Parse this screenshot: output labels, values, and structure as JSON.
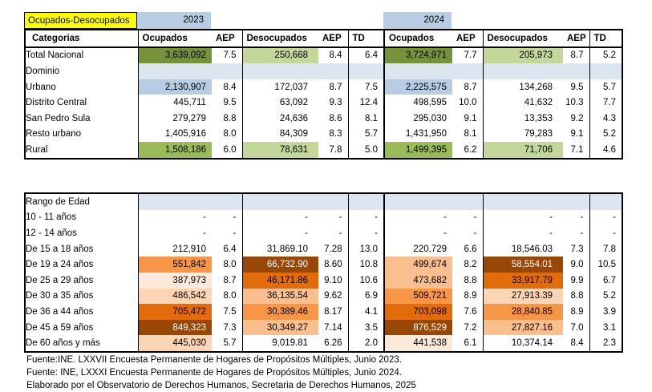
{
  "title": {
    "label": "Ocupados-Desocupados",
    "year_2023": "2023",
    "year_2024": "2024"
  },
  "colors": {
    "title_bg": "#FFFF00",
    "year_bg": "#B8CCE4",
    "band": "#DCE6F1",
    "g1": "#76933C",
    "g2": "#9BBB59",
    "g3": "#C4D79B",
    "blu": "#B8CCE4",
    "o1": "#FDE9D9",
    "o2": "#FCD5B4",
    "o3": "#FABF8F",
    "o4": "#F79646",
    "o5": "#E26B0A",
    "o6": "#974706",
    "white_text": "#FFFFFF"
  },
  "columns": [
    "Categorias",
    "Ocupados",
    "AEP",
    "Desocupados",
    "AEP",
    "TD",
    "Ocupados",
    "AEP",
    "Desocupados",
    "AEP",
    "TD"
  ],
  "table1": {
    "rows": [
      {
        "label": "Total Nacional",
        "ind": 1,
        "bold": true,
        "cells": [
          {
            "v": "3,639,092",
            "bg": "g1",
            "b": 1
          },
          {
            "v": "7.5",
            "b": 1
          },
          {
            "v": "250,668",
            "bg": "g3"
          },
          {
            "v": "8.4",
            "b": 1
          },
          {
            "v": "6.4",
            "b": 1
          },
          {
            "v": "3,724,971",
            "bg": "g1",
            "b": 1
          },
          {
            "v": "7.7",
            "b": 1
          },
          {
            "v": "205,973",
            "bg": "g3"
          },
          {
            "v": "8.7",
            "b": 1
          },
          {
            "v": "5.2",
            "b": 1
          }
        ]
      },
      {
        "label": "Dominio",
        "ind": 1,
        "bold": true,
        "band": true,
        "cells": [
          "",
          "",
          "",
          "",
          "",
          "",
          "",
          "",
          "",
          ""
        ]
      },
      {
        "label": "Urbano",
        "ind": 3,
        "cells": [
          {
            "v": "2,130,907",
            "bg": "blu"
          },
          "8.4",
          "172,037",
          "8.7",
          "7.5",
          {
            "v": "2,225,575",
            "bg": "blu"
          },
          "8.7",
          "134,268",
          "9.5",
          "5.7"
        ]
      },
      {
        "label": "Distrito Central",
        "ind": 4,
        "cells": [
          "445,711",
          "9.5",
          "63,092",
          "9.3",
          "12.4",
          "498,595",
          "10.0",
          "41,632",
          "10.3",
          "7.7"
        ]
      },
      {
        "label": "San Pedro Sula",
        "ind": 4,
        "cells": [
          "279,279",
          "8.8",
          "24,636",
          "8.6",
          "8.1",
          "295,030",
          "9.1",
          "13,353",
          "9.2",
          "4.3"
        ]
      },
      {
        "label": "Resto urbano",
        "ind": 4,
        "cells": [
          "1,405,916",
          "8.0",
          "84,309",
          "8.3",
          "5.7",
          "1,431,950",
          "8.1",
          "79,283",
          "9.1",
          "5.2"
        ]
      },
      {
        "label": "Rural",
        "ind": 2,
        "cells": [
          {
            "v": "1,508,186",
            "bg": "g2"
          },
          "6.0",
          {
            "v": "78,631",
            "bg": "g3"
          },
          "7.8",
          "5.0",
          {
            "v": "1,499,395",
            "bg": "g2"
          },
          "6.2",
          {
            "v": "71,706",
            "bg": "g3"
          },
          "7.1",
          "4.6"
        ]
      }
    ]
  },
  "table2": {
    "rows": [
      {
        "label": "Rango de Edad",
        "ind": 0,
        "bold": true,
        "band": true,
        "cells": [
          "",
          "",
          "",
          "",
          "",
          "",
          "",
          "",
          "",
          ""
        ]
      },
      {
        "label": "10 - 11 años",
        "ind": 2,
        "cells": [
          "-",
          "-",
          "-",
          "-",
          "-",
          "-",
          "-",
          "-",
          "-",
          "-"
        ]
      },
      {
        "label": "12 - 14 años",
        "ind": 2,
        "cells": [
          "-",
          "-",
          "-",
          "-",
          "-",
          "-",
          "-",
          "-",
          "-",
          "-"
        ]
      },
      {
        "label": "De 15 a 18 años",
        "ind": 2,
        "cells": [
          "212,910",
          "6.4",
          "31,869.10",
          "7.28",
          "13.0",
          "220,729",
          "6.6",
          "18,546.03",
          "7.3",
          "7.8"
        ]
      },
      {
        "label": "De 19 a 24 años",
        "ind": 2,
        "cells": [
          {
            "v": "551,842",
            "bg": "o4"
          },
          "8.0",
          {
            "v": "66,732.90",
            "bg": "o6",
            "fg": "w"
          },
          "8.60",
          "10.8",
          {
            "v": "499,674",
            "bg": "o3"
          },
          "8.2",
          {
            "v": "58,554.01",
            "bg": "o6",
            "fg": "w"
          },
          "9.0",
          "10.5"
        ]
      },
      {
        "label": "De 25 a 29 años",
        "ind": 2,
        "cells": [
          {
            "v": "387,973",
            "bg": "o1"
          },
          "8.7",
          {
            "v": "46,171.86",
            "bg": "o5"
          },
          "9.10",
          "10.6",
          {
            "v": "473,682",
            "bg": "o3"
          },
          "8.8",
          {
            "v": "33,917.79",
            "bg": "o5"
          },
          "9.9",
          "6.7"
        ]
      },
      {
        "label": "De 30 a 35 años",
        "ind": 2,
        "cells": [
          {
            "v": "486,542",
            "bg": "o2"
          },
          "8.0",
          {
            "v": "36,135.54",
            "bg": "o3"
          },
          "9.62",
          "6.9",
          {
            "v": "509,721",
            "bg": "o4"
          },
          "8.9",
          {
            "v": "27,913.39",
            "bg": "o2"
          },
          "8.8",
          "5.2"
        ]
      },
      {
        "label": "De 36 a 44 años",
        "ind": 2,
        "cells": [
          {
            "v": "705,472",
            "bg": "o5"
          },
          "7.5",
          {
            "v": "30,389.46",
            "bg": "o4"
          },
          "8.17",
          "4.1",
          {
            "v": "703,098",
            "bg": "o5"
          },
          "7.6",
          {
            "v": "28,840.85",
            "bg": "o4"
          },
          "8.9",
          "3.9"
        ]
      },
      {
        "label": "De 45 a 59 años",
        "ind": 2,
        "cells": [
          {
            "v": "849,323",
            "bg": "o6",
            "fg": "w"
          },
          "7.3",
          {
            "v": "30,349.27",
            "bg": "o3"
          },
          "7.14",
          "3.5",
          {
            "v": "876,529",
            "bg": "o6",
            "fg": "w"
          },
          "7.2",
          {
            "v": "27,827.16",
            "bg": "o3"
          },
          "7.0",
          "3.1"
        ]
      },
      {
        "label": "De 60 años y más",
        "ind": 2,
        "cells": [
          {
            "v": "445,030",
            "bg": "o2"
          },
          "5.7",
          "9,019.81",
          "6.26",
          "2.0",
          {
            "v": "441,538",
            "bg": "o1"
          },
          "6.1",
          "10,374.14",
          "8.4",
          "2.3"
        ]
      }
    ]
  },
  "footnotes": [
    "Fuente:INE.  LXXVII Encuesta Permanente de Hogares de Propósitos Múltiples, Junio 2023.",
    "Fuente: INE,  LXXXI Encuesta Permanente de Hogares de Propósitos Múltiples, Junio 2024.",
    "Elaborado por el Observatorio de Derechos Humanos, Secretaria de Derechos Humanos, 2025"
  ]
}
